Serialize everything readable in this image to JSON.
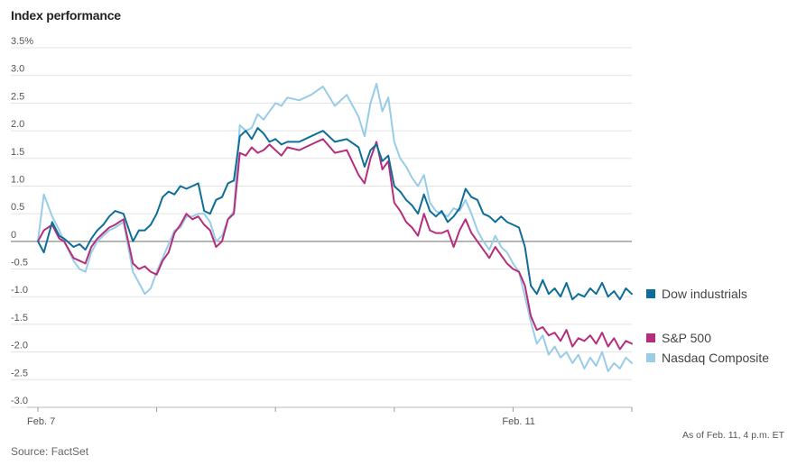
{
  "title": "Index performance",
  "source": "Source: FactSet",
  "as_of": "As of Feb. 11, 4 p.m. ET",
  "chart_data": {
    "type": "line",
    "title": "Index performance",
    "ylim": [
      -3.0,
      3.5
    ],
    "yticks": [
      3.5,
      3.0,
      2.5,
      2.0,
      1.5,
      1.0,
      0.5,
      0,
      -0.5,
      -1.0,
      -1.5,
      -2.0,
      -2.5,
      -3.0
    ],
    "ytick_labels": [
      "3.5%",
      "3.0",
      "2.5",
      "2.0",
      "1.5",
      "1.0",
      "0.5",
      "0",
      "-0.5",
      "-1.0",
      "-1.5",
      "-2.0",
      "-2.5",
      "-3.0"
    ],
    "x_day_boundaries": [
      0,
      1,
      2,
      3,
      4,
      5
    ],
    "xtick_labels": [
      {
        "label": "Feb. 7",
        "x": 0
      },
      {
        "label": "Feb. 11",
        "x": 4
      }
    ],
    "grid": true,
    "legend": "right",
    "series": [
      {
        "name": "Dow industrials",
        "color": "#0f6e97",
        "x": [
          0,
          0.05,
          0.12,
          0.18,
          0.22,
          0.3,
          0.35,
          0.4,
          0.45,
          0.5,
          0.55,
          0.6,
          0.65,
          0.72,
          0.8,
          0.85,
          0.9,
          0.95,
          1.0,
          1.05,
          1.1,
          1.15,
          1.2,
          1.25,
          1.3,
          1.35,
          1.4,
          1.45,
          1.5,
          1.55,
          1.6,
          1.65,
          1.7,
          1.75,
          1.8,
          1.85,
          1.9,
          1.95,
          2.0,
          2.05,
          2.1,
          2.2,
          2.3,
          2.4,
          2.5,
          2.6,
          2.7,
          2.75,
          2.8,
          2.85,
          2.9,
          2.95,
          3.0,
          3.05,
          3.1,
          3.15,
          3.2,
          3.25,
          3.3,
          3.35,
          3.4,
          3.45,
          3.5,
          3.55,
          3.6,
          3.65,
          3.7,
          3.75,
          3.8,
          3.85,
          3.9,
          3.95,
          4.0,
          4.05,
          4.1,
          4.15,
          4.2,
          4.25,
          4.3,
          4.35,
          4.4,
          4.45,
          4.5,
          4.55,
          4.6,
          4.65,
          4.7,
          4.75,
          4.8,
          4.85,
          4.9,
          4.95,
          5.0
        ],
        "values": [
          0.0,
          -0.2,
          0.35,
          0.1,
          0.05,
          -0.1,
          -0.05,
          -0.15,
          0.05,
          0.2,
          0.3,
          0.45,
          0.55,
          0.5,
          0.0,
          0.2,
          0.2,
          0.3,
          0.5,
          0.8,
          0.9,
          0.85,
          1.0,
          0.95,
          1.0,
          1.05,
          0.55,
          0.5,
          0.75,
          0.8,
          1.05,
          1.1,
          1.9,
          2.0,
          1.85,
          2.05,
          1.95,
          1.8,
          1.85,
          1.75,
          1.8,
          1.8,
          1.9,
          2.0,
          1.8,
          1.85,
          1.7,
          1.35,
          1.65,
          1.75,
          1.45,
          1.55,
          1.0,
          0.9,
          0.75,
          0.65,
          0.5,
          0.85,
          0.55,
          0.45,
          0.55,
          0.35,
          0.45,
          0.6,
          0.95,
          0.8,
          0.75,
          0.5,
          0.45,
          0.35,
          0.45,
          0.35,
          0.3,
          0.25,
          -0.1,
          -0.8,
          -0.95,
          -0.7,
          -0.95,
          -0.85,
          -1.0,
          -0.75,
          -1.05,
          -0.95,
          -1.0,
          -0.85,
          -0.95,
          -0.75,
          -1.0,
          -0.9,
          -1.05,
          -0.85,
          -0.95
        ]
      },
      {
        "name": "S&P 500",
        "color": "#b52e7c",
        "x": [
          0,
          0.05,
          0.12,
          0.18,
          0.22,
          0.3,
          0.35,
          0.4,
          0.45,
          0.5,
          0.55,
          0.6,
          0.65,
          0.72,
          0.8,
          0.85,
          0.9,
          0.95,
          1.0,
          1.05,
          1.1,
          1.15,
          1.2,
          1.25,
          1.3,
          1.35,
          1.4,
          1.45,
          1.5,
          1.55,
          1.6,
          1.65,
          1.7,
          1.75,
          1.8,
          1.85,
          1.9,
          1.95,
          2.0,
          2.05,
          2.1,
          2.2,
          2.3,
          2.4,
          2.5,
          2.6,
          2.7,
          2.75,
          2.8,
          2.85,
          2.9,
          2.95,
          3.0,
          3.05,
          3.1,
          3.15,
          3.2,
          3.25,
          3.3,
          3.35,
          3.4,
          3.45,
          3.5,
          3.55,
          3.6,
          3.65,
          3.7,
          3.75,
          3.8,
          3.85,
          3.9,
          3.95,
          4.0,
          4.05,
          4.1,
          4.15,
          4.2,
          4.25,
          4.3,
          4.35,
          4.4,
          4.45,
          4.5,
          4.55,
          4.6,
          4.65,
          4.7,
          4.75,
          4.8,
          4.85,
          4.9,
          4.95,
          5.0
        ],
        "values": [
          0.0,
          0.2,
          0.3,
          0.05,
          0.0,
          -0.3,
          -0.35,
          -0.4,
          -0.1,
          0.05,
          0.15,
          0.25,
          0.3,
          0.4,
          -0.4,
          -0.5,
          -0.45,
          -0.55,
          -0.6,
          -0.35,
          -0.2,
          0.15,
          0.3,
          0.5,
          0.4,
          0.45,
          0.3,
          0.2,
          -0.1,
          0.0,
          0.4,
          0.5,
          1.6,
          1.55,
          1.7,
          1.6,
          1.65,
          1.75,
          1.65,
          1.55,
          1.7,
          1.65,
          1.75,
          1.85,
          1.6,
          1.65,
          1.2,
          1.05,
          1.5,
          1.8,
          1.3,
          1.45,
          0.7,
          0.55,
          0.35,
          0.25,
          0.1,
          0.5,
          0.2,
          0.15,
          0.15,
          0.2,
          -0.1,
          0.2,
          0.4,
          0.15,
          0.0,
          -0.15,
          -0.3,
          -0.1,
          -0.25,
          -0.4,
          -0.5,
          -0.55,
          -0.8,
          -1.35,
          -1.6,
          -1.55,
          -1.7,
          -1.65,
          -1.8,
          -1.6,
          -1.9,
          -1.75,
          -1.8,
          -1.7,
          -1.85,
          -1.65,
          -1.9,
          -1.75,
          -1.95,
          -1.8,
          -1.85
        ]
      },
      {
        "name": "Nasdaq Composite",
        "color": "#98cce8",
        "x": [
          0,
          0.05,
          0.12,
          0.18,
          0.22,
          0.3,
          0.35,
          0.4,
          0.45,
          0.5,
          0.55,
          0.6,
          0.65,
          0.72,
          0.8,
          0.85,
          0.9,
          0.95,
          1.0,
          1.05,
          1.1,
          1.15,
          1.2,
          1.25,
          1.3,
          1.35,
          1.4,
          1.45,
          1.5,
          1.55,
          1.6,
          1.65,
          1.7,
          1.75,
          1.8,
          1.85,
          1.9,
          1.95,
          2.0,
          2.05,
          2.1,
          2.2,
          2.3,
          2.4,
          2.5,
          2.6,
          2.7,
          2.75,
          2.8,
          2.85,
          2.9,
          2.95,
          3.0,
          3.05,
          3.1,
          3.15,
          3.2,
          3.25,
          3.3,
          3.35,
          3.4,
          3.45,
          3.5,
          3.55,
          3.6,
          3.65,
          3.7,
          3.75,
          3.8,
          3.85,
          3.9,
          3.95,
          4.0,
          4.05,
          4.1,
          4.15,
          4.2,
          4.25,
          4.3,
          4.35,
          4.4,
          4.45,
          4.5,
          4.55,
          4.6,
          4.65,
          4.7,
          4.75,
          4.8,
          4.85,
          4.9,
          4.95,
          5.0
        ],
        "values": [
          0.0,
          0.85,
          0.45,
          0.2,
          0.0,
          -0.35,
          -0.5,
          -0.55,
          -0.2,
          0.0,
          0.1,
          0.2,
          0.25,
          0.35,
          -0.55,
          -0.75,
          -0.95,
          -0.85,
          -0.55,
          -0.3,
          -0.05,
          0.2,
          0.25,
          0.45,
          0.45,
          0.5,
          0.5,
          0.35,
          0.0,
          0.1,
          0.4,
          0.55,
          2.1,
          2.0,
          2.05,
          2.3,
          2.2,
          2.35,
          2.5,
          2.45,
          2.6,
          2.55,
          2.65,
          2.8,
          2.45,
          2.65,
          2.25,
          1.9,
          2.5,
          2.85,
          2.35,
          2.6,
          1.8,
          1.5,
          1.35,
          1.15,
          1.0,
          1.2,
          0.7,
          0.55,
          0.5,
          0.45,
          0.6,
          0.55,
          0.75,
          0.5,
          0.2,
          0.0,
          -0.15,
          0.1,
          -0.1,
          -0.2,
          -0.4,
          -0.55,
          -1.0,
          -1.45,
          -1.85,
          -1.7,
          -2.05,
          -1.9,
          -2.1,
          -2.0,
          -2.2,
          -2.05,
          -2.3,
          -2.1,
          -2.25,
          -2.0,
          -2.35,
          -2.2,
          -2.3,
          -2.1,
          -2.2
        ]
      }
    ]
  }
}
